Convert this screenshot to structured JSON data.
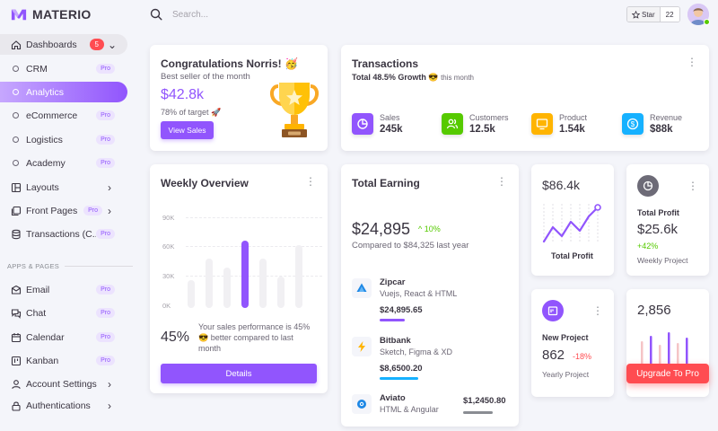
{
  "brand": {
    "name": "MATERIO",
    "logo_icon": "materio-logo-icon"
  },
  "colors": {
    "primary": "#9155fd",
    "success": "#56ca00",
    "warning": "#ffb400",
    "info": "#16b1ff",
    "error": "#ff4c51"
  },
  "sidebar": {
    "dashboards": {
      "label": "Dashboards",
      "badge": "5"
    },
    "items": [
      {
        "label": "CRM",
        "pro": "Pro"
      },
      {
        "label": "Analytics"
      },
      {
        "label": "eCommerce",
        "pro": "Pro"
      },
      {
        "label": "Logistics",
        "pro": "Pro"
      },
      {
        "label": "Academy",
        "pro": "Pro"
      }
    ],
    "layouts": "Layouts",
    "front_pages": {
      "label": "Front Pages",
      "pro": "Pro"
    },
    "transactions": {
      "label": "Transactions (C...",
      "pro": "Pro"
    },
    "section_title": "APPS & PAGES",
    "apps": [
      {
        "label": "Email",
        "pro": "Pro",
        "icon": "email-icon"
      },
      {
        "label": "Chat",
        "pro": "Pro",
        "icon": "chat-icon"
      },
      {
        "label": "Calendar",
        "pro": "Pro",
        "icon": "calendar-icon"
      },
      {
        "label": "Kanban",
        "pro": "Pro",
        "icon": "kanban-icon"
      },
      {
        "label": "Account Settings",
        "icon": "account-icon"
      },
      {
        "label": "Authentications",
        "icon": "lock-icon"
      }
    ]
  },
  "header": {
    "search_placeholder": "Search...",
    "star_label": "Star",
    "star_count": "22"
  },
  "congrats": {
    "title": "Congratulations Norris! 🥳",
    "subtitle": "Best seller of the month",
    "amount": "$42.8k",
    "target": "78% of target 🚀",
    "button": "View Sales"
  },
  "transactions": {
    "title": "Transactions",
    "growth_prefix": "Total 48.5% Growth 😎",
    "growth_suffix": "this month",
    "stats": [
      {
        "label": "Sales",
        "value": "245k",
        "color": "#9155fd",
        "icon": "trending-up-icon"
      },
      {
        "label": "Customers",
        "value": "12.5k",
        "color": "#56ca00",
        "icon": "users-icon"
      },
      {
        "label": "Product",
        "value": "1.54k",
        "color": "#ffb400",
        "icon": "monitor-icon"
      },
      {
        "label": "Revenue",
        "value": "$88k",
        "color": "#16b1ff",
        "icon": "dollar-icon"
      }
    ]
  },
  "weekly": {
    "title": "Weekly Overview",
    "y_labels": [
      "90K",
      "60K",
      "30K",
      "0K"
    ],
    "bars": [
      0.31,
      0.55,
      0.45,
      0.75,
      0.55,
      0.35,
      0.7
    ],
    "highlight_index": 3,
    "pct": "45%",
    "text": "Your sales performance is 45% 😎 better compared to last month",
    "button": "Details"
  },
  "earning": {
    "title": "Total Earning",
    "amount": "$24,895",
    "growth": "^ 10%",
    "compare": "Compared to $84,325 last year",
    "items": [
      {
        "name": "Zipcar",
        "desc": "Vuejs, React & HTML",
        "value": "$24,895.65",
        "progress": 0.55,
        "color": "#9155fd",
        "icon": "zipcar-icon"
      },
      {
        "name": "Bitbank",
        "desc": "Sketch, Figma & XD",
        "value": "$8,6500.20",
        "progress": 0.85,
        "color": "#16b1ff",
        "icon": "bitbank-icon"
      },
      {
        "name": "Aviato",
        "desc": "HTML & Angular",
        "value": "$1,2450.80",
        "progress": 0.75,
        "color": "#8a8d93",
        "icon": "aviato-icon"
      }
    ]
  },
  "profit_chart": {
    "value": "$86.4k",
    "label": "Total Profit"
  },
  "total_profit": {
    "title": "Total Profit",
    "value": "$25.6k",
    "change": "+42%",
    "sub": "Weekly Project"
  },
  "new_project": {
    "title": "New Project",
    "value": "862",
    "change": "-18%",
    "sub": "Yearly Project"
  },
  "sessions": {
    "value": "2,856",
    "button": "Upgrade To Pro"
  }
}
